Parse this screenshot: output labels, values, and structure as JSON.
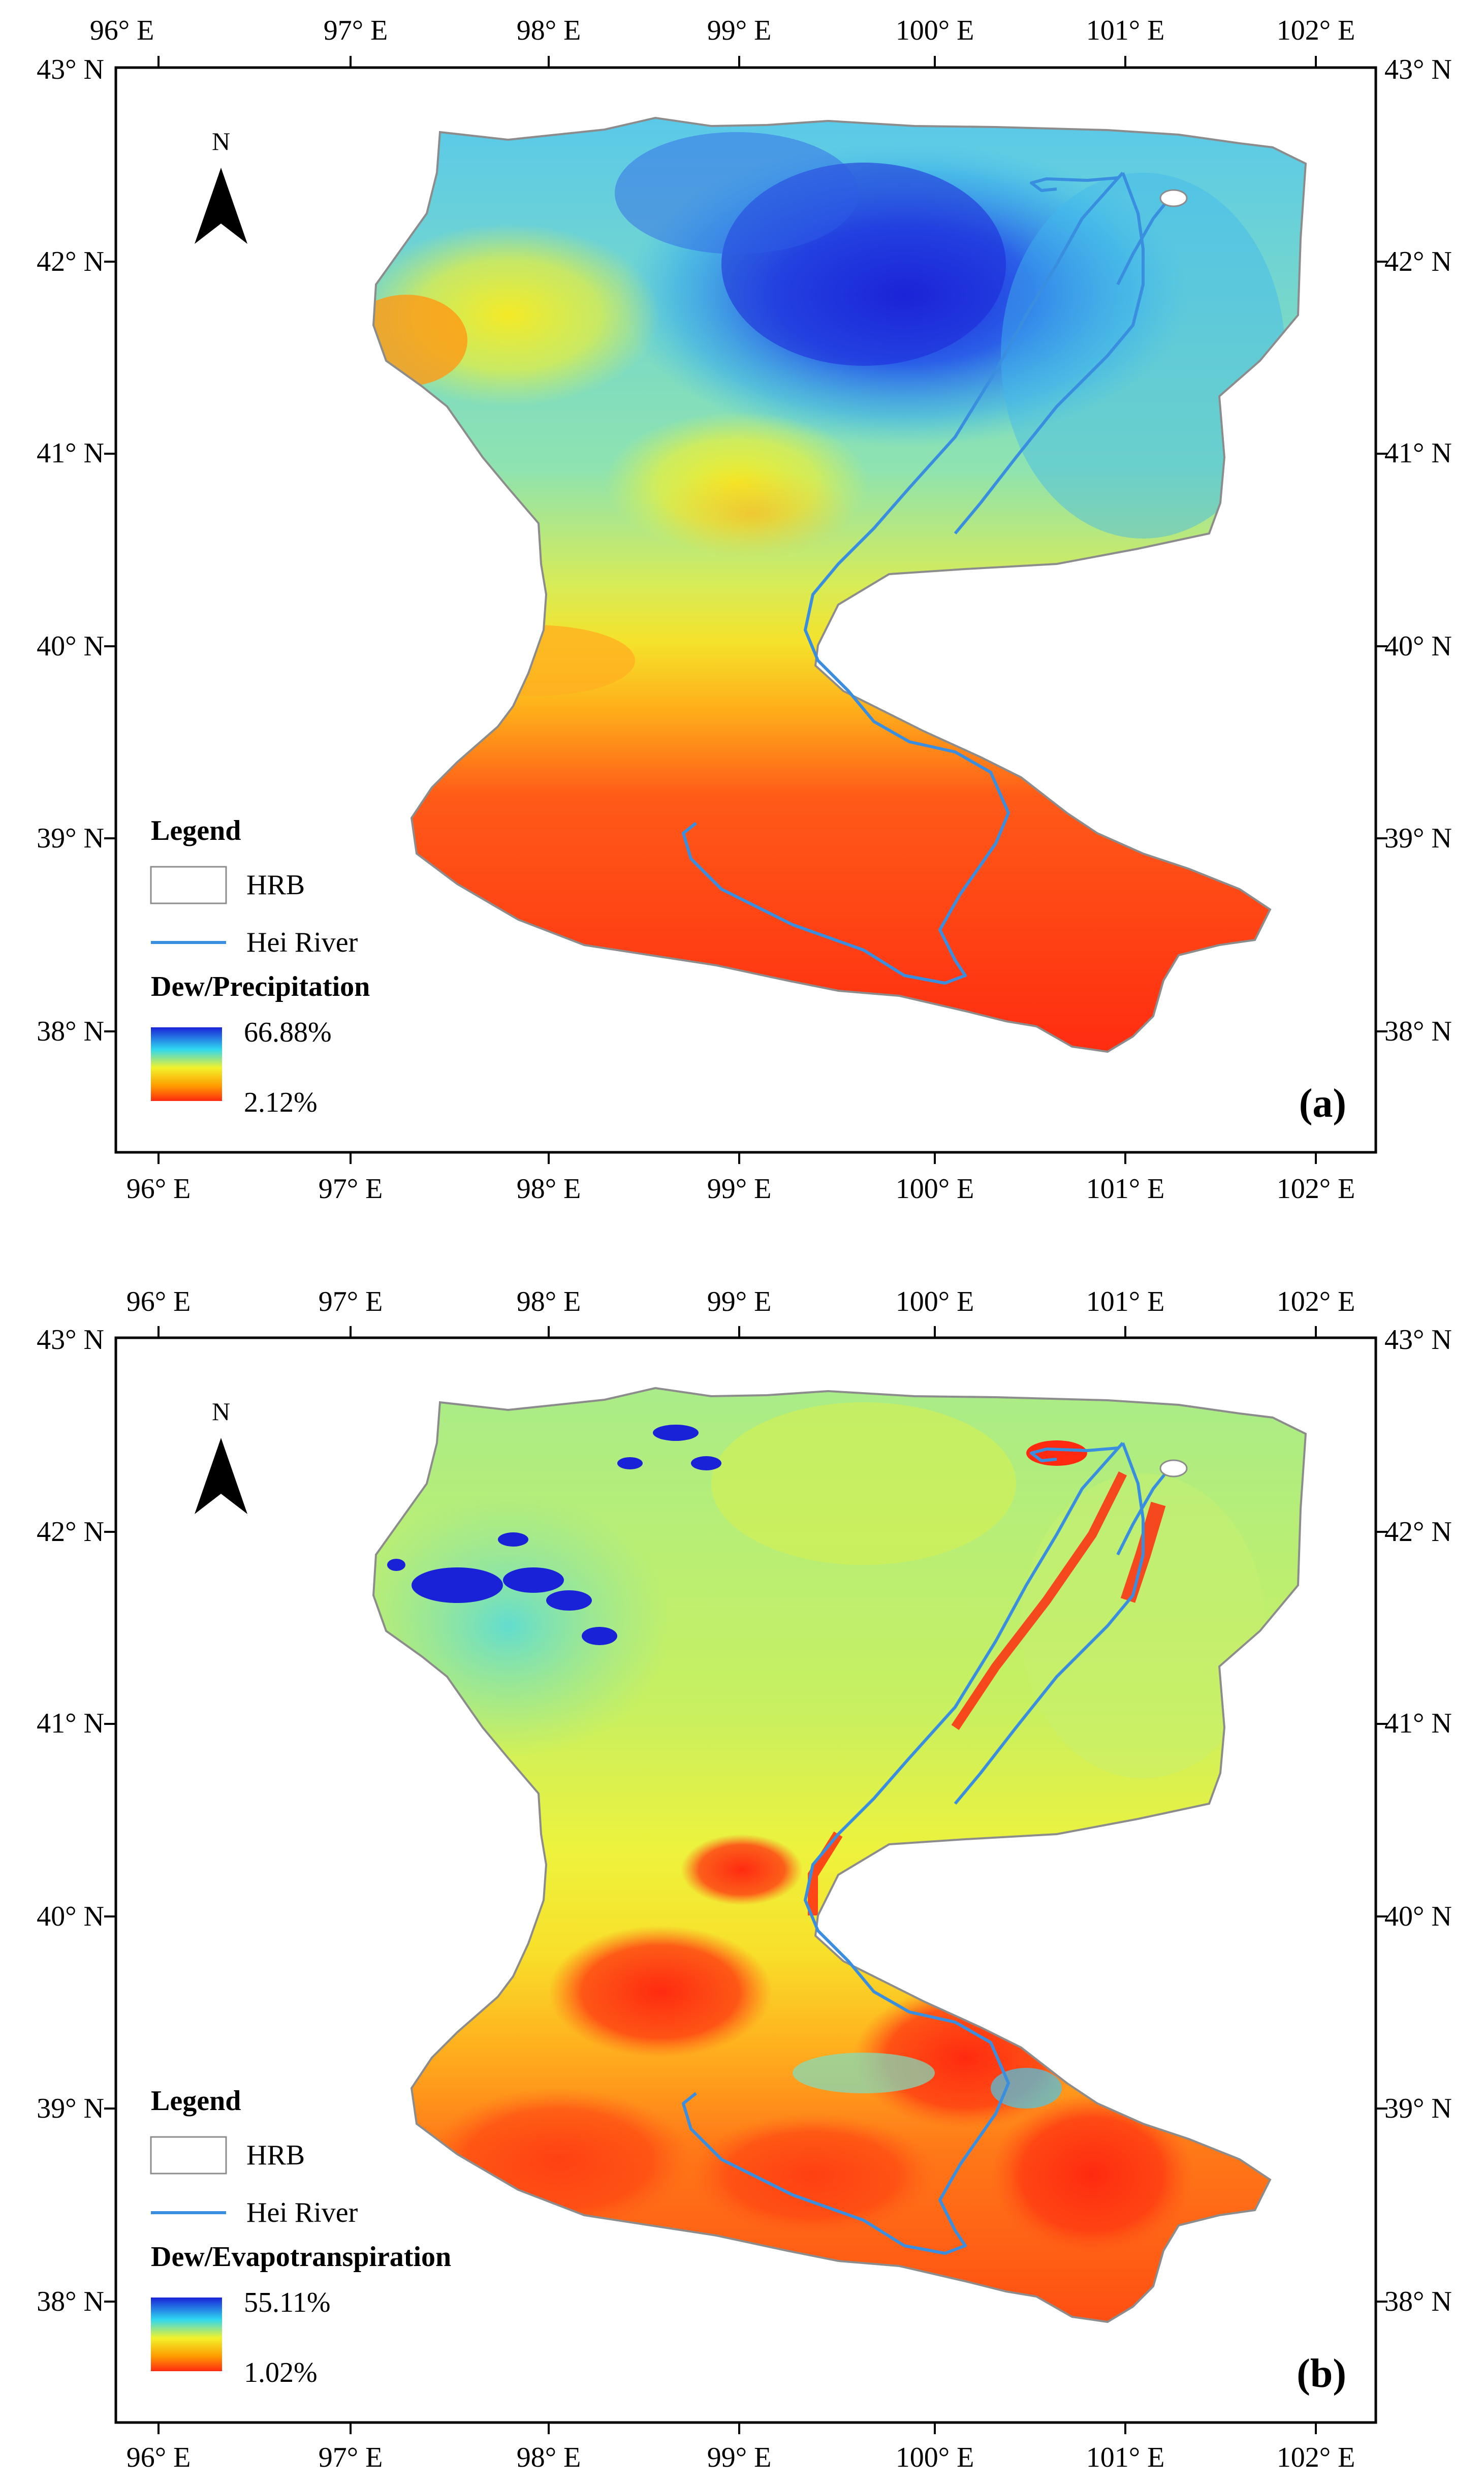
{
  "panels": [
    {
      "id": "a",
      "label": "(a)",
      "lon_labels": [
        "96° E",
        "97° E",
        "98° E",
        "99° E",
        "100° E",
        "101° E",
        "102° E"
      ],
      "lat_labels": [
        "43° N",
        "42° N",
        "41° N",
        "40° N",
        "39° N",
        "38° N"
      ],
      "north_label": "N",
      "legend": {
        "title": "Legend",
        "hrb_label": "HRB",
        "river_label": "Hei River",
        "variable": "Dew/Precipitation",
        "max": "66.88%",
        "min": "2.12%"
      }
    },
    {
      "id": "b",
      "label": "(b)",
      "lon_labels": [
        "96° E",
        "97° E",
        "98° E",
        "99° E",
        "100° E",
        "101° E",
        "102° E"
      ],
      "lat_labels": [
        "43° N",
        "42° N",
        "41° N",
        "40° N",
        "39° N",
        "38° N"
      ],
      "north_label": "N",
      "legend": {
        "title": "Legend",
        "hrb_label": "HRB",
        "river_label": "Hei River",
        "variable": "Dew/Evapotranspiration",
        "max": "55.11%",
        "min": "1.02%"
      }
    }
  ],
  "colors": {
    "river": "#3a8ee0",
    "boundary": "#8c8c8c",
    "ramp_high": "#1a22d8",
    "ramp_mid_high": "#2fd8f0",
    "ramp_mid": "#f2f22a",
    "ramp_mid_low": "#ff9a00",
    "ramp_low": "#ff2a10"
  }
}
